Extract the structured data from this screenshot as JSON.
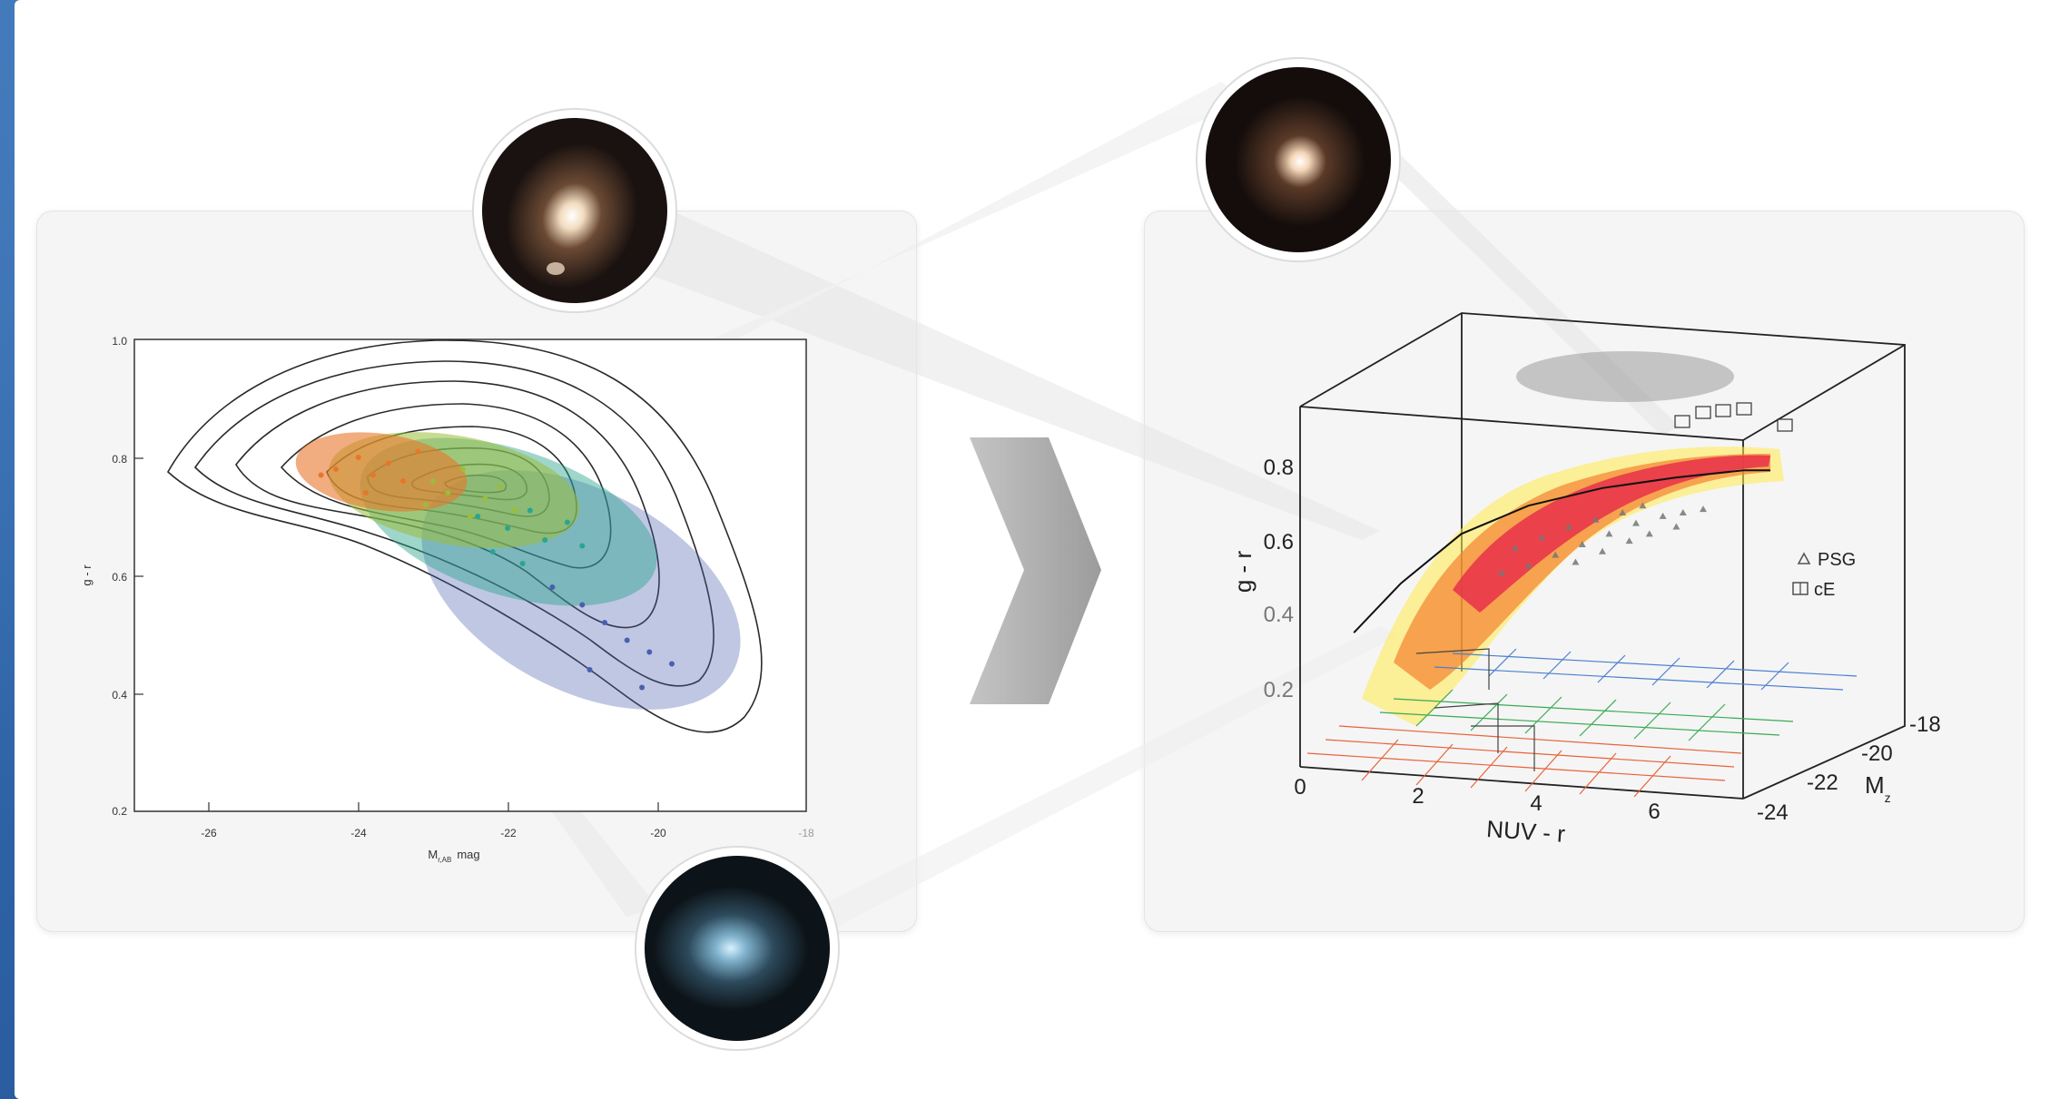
{
  "chart_data": [
    {
      "type": "scatter",
      "xlabel": "M",
      "xlabel_sub": "r,AB",
      "xlabel_unit": "mag",
      "ylabel": "g - r",
      "xlim": [
        -27,
        -18
      ],
      "ylim": [
        0.2,
        1.0
      ],
      "x_ticks": [
        "-26",
        "-24",
        "-22",
        "-20",
        "-18"
      ],
      "y_ticks": [
        "1.0",
        "0.8",
        "0.6",
        "0.4",
        "0.2"
      ],
      "x_tick_values": [
        -26,
        -24,
        -22,
        -20,
        -18
      ],
      "y_tick_values": [
        1.0,
        0.8,
        0.6,
        0.4,
        0.2
      ],
      "contour_center": [
        -22.7,
        0.75
      ],
      "series": [
        {
          "color": "#e8762a",
          "x": [
            -24.3,
            -24.0,
            -23.8,
            -23.6,
            -23.4,
            -23.9,
            -24.5,
            -23.2
          ],
          "y": [
            0.78,
            0.8,
            0.77,
            0.79,
            0.76,
            0.74,
            0.77,
            0.81
          ]
        },
        {
          "color": "#9bbd3a",
          "x": [
            -23.0,
            -22.8,
            -22.6,
            -22.3,
            -22.1,
            -21.9,
            -22.5,
            -23.1
          ],
          "y": [
            0.76,
            0.74,
            0.78,
            0.73,
            0.75,
            0.71,
            0.7,
            0.72
          ]
        },
        {
          "color": "#2aa58f",
          "x": [
            -22.4,
            -22.0,
            -21.7,
            -21.5,
            -21.2,
            -22.2,
            -21.8,
            -21.0
          ],
          "y": [
            0.7,
            0.68,
            0.71,
            0.66,
            0.69,
            0.64,
            0.62,
            0.65
          ]
        },
        {
          "color": "#4a5fb0",
          "x": [
            -21.4,
            -21.0,
            -20.7,
            -20.4,
            -20.1,
            -19.8,
            -20.9,
            -20.2
          ],
          "y": [
            0.58,
            0.55,
            0.52,
            0.49,
            0.47,
            0.45,
            0.44,
            0.41
          ]
        }
      ]
    },
    {
      "type": "scatter",
      "xlabel": "NUV - r",
      "ylabel": "g - r",
      "zlabel": "M",
      "zlabel_sub": "z",
      "xlim": [
        0,
        7
      ],
      "ylim": [
        0.0,
        0.9
      ],
      "zlim": [
        -24,
        -18
      ],
      "x_ticks": [
        "0",
        "2",
        "4",
        "6"
      ],
      "y_ticks": [
        "0.2",
        "0.4",
        "0.6",
        "0.8"
      ],
      "z_ticks": [
        "-18",
        "-20",
        "-22",
        "-24"
      ],
      "x_tick_values": [
        0,
        2,
        4,
        6
      ],
      "y_tick_values": [
        0.2,
        0.4,
        0.6,
        0.8
      ],
      "legend": [
        {
          "label": "PSG",
          "marker": "triangle"
        },
        {
          "label": "cE",
          "marker": "box"
        }
      ],
      "legend_position": "right",
      "ridge": {
        "x": [
          0.8,
          1.5,
          2.4,
          3.4,
          4.5,
          5.6,
          6.6,
          7.0
        ],
        "y": [
          0.38,
          0.52,
          0.66,
          0.74,
          0.79,
          0.82,
          0.84,
          0.84
        ]
      }
    }
  ]
}
